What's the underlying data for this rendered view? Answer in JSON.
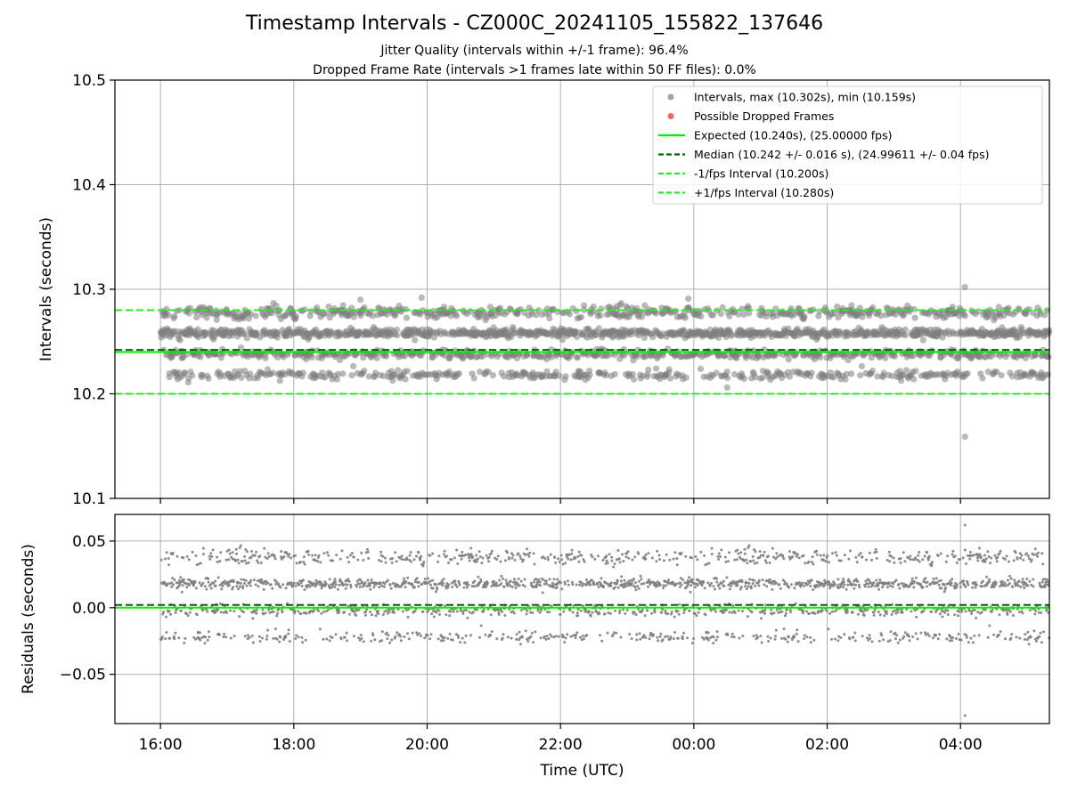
{
  "figure": {
    "title": "Timestamp Intervals - CZ000C_20241105_155822_137646",
    "subtitle_1": "Jitter Quality (intervals within +/-1 frame): 96.4%",
    "subtitle_2": "Dropped Frame Rate (intervals >1 frames late within 50 FF files): 0.0%"
  },
  "colors": {
    "points": "#808080",
    "dropped": "#ff0000",
    "expected": "#00ee00",
    "median": "#006400",
    "interval_lines": "#22ee22",
    "grid": "#b0b0b0"
  },
  "chart_data": [
    {
      "type": "scatter",
      "panel": "intervals",
      "ylabel": "Intervals (seconds)",
      "ylim": [
        10.1,
        10.5
      ],
      "yticks": [
        10.1,
        10.2,
        10.3,
        10.4,
        10.5
      ],
      "ytick_labels": [
        "10.1",
        "10.2",
        "10.3",
        "10.4",
        "10.5"
      ],
      "grid": true,
      "legend_placement": "top-right",
      "legend": [
        {
          "kind": "marker",
          "color": "#999999",
          "label": "Intervals, max (10.302s), min (10.159s)"
        },
        {
          "kind": "marker",
          "color": "#ee5555",
          "label": "Possible Dropped Frames"
        },
        {
          "kind": "solid",
          "color": "#00ee00",
          "label": "Expected (10.240s), (25.00000 fps)"
        },
        {
          "kind": "dashed",
          "color": "#006400",
          "label": "Median (10.242 +/- 0.016 s), (24.99611 +/- 0.04 fps)"
        },
        {
          "kind": "dashed",
          "color": "#22ee22",
          "label": "-1/fps Interval (10.200s)"
        },
        {
          "kind": "dashed",
          "color": "#22ee22",
          "label": "+1/fps Interval (10.280s)"
        }
      ],
      "reference_lines": {
        "expected": 10.24,
        "median": 10.242,
        "minus_one_frame": 10.2,
        "plus_one_frame": 10.28
      },
      "point_bands": [
        {
          "y": 10.218,
          "share": 0.16,
          "spread": 0.002
        },
        {
          "y": 10.238,
          "share": 0.22,
          "spread": 0.002
        },
        {
          "y": 10.258,
          "share": 0.4,
          "spread": 0.002
        },
        {
          "y": 10.278,
          "share": 0.22,
          "spread": 0.003
        }
      ],
      "points_span": [
        "16:00",
        "05:20"
      ],
      "max_point": {
        "time": "04:04",
        "y": 10.302
      },
      "min_point": {
        "time": "04:04",
        "y": 10.159
      },
      "extra_points": [
        {
          "time": "19:00",
          "y": 10.29
        },
        {
          "time": "19:55",
          "y": 10.292
        },
        {
          "time": "23:55",
          "y": 10.291
        },
        {
          "time": "00:30",
          "y": 10.206
        },
        {
          "time": "16:25",
          "y": 10.211
        }
      ]
    },
    {
      "type": "scatter",
      "panel": "residuals",
      "ylabel": "Residuals (seconds)",
      "xlabel": "Time (UTC)",
      "ylim": [
        -0.087,
        0.07
      ],
      "yticks": [
        -0.05,
        0.0,
        0.05
      ],
      "ytick_labels": [
        "−0.05",
        "0.00",
        "0.05"
      ],
      "xlim": [
        "15:19",
        "05:20"
      ],
      "xticks": [
        "16:00",
        "18:00",
        "20:00",
        "22:00",
        "00:00",
        "02:00",
        "04:00"
      ],
      "grid": true,
      "reference_lines": {
        "expected": 0.0,
        "median": 0.002
      },
      "point_bands": [
        {
          "y": -0.022,
          "share": 0.16,
          "spread": 0.002
        },
        {
          "y": -0.002,
          "share": 0.22,
          "spread": 0.002
        },
        {
          "y": 0.018,
          "share": 0.4,
          "spread": 0.002
        },
        {
          "y": 0.038,
          "share": 0.22,
          "spread": 0.003
        }
      ],
      "max_point": {
        "time": "04:04",
        "y": 0.062
      },
      "min_point": {
        "time": "04:04",
        "y": -0.081
      }
    }
  ]
}
